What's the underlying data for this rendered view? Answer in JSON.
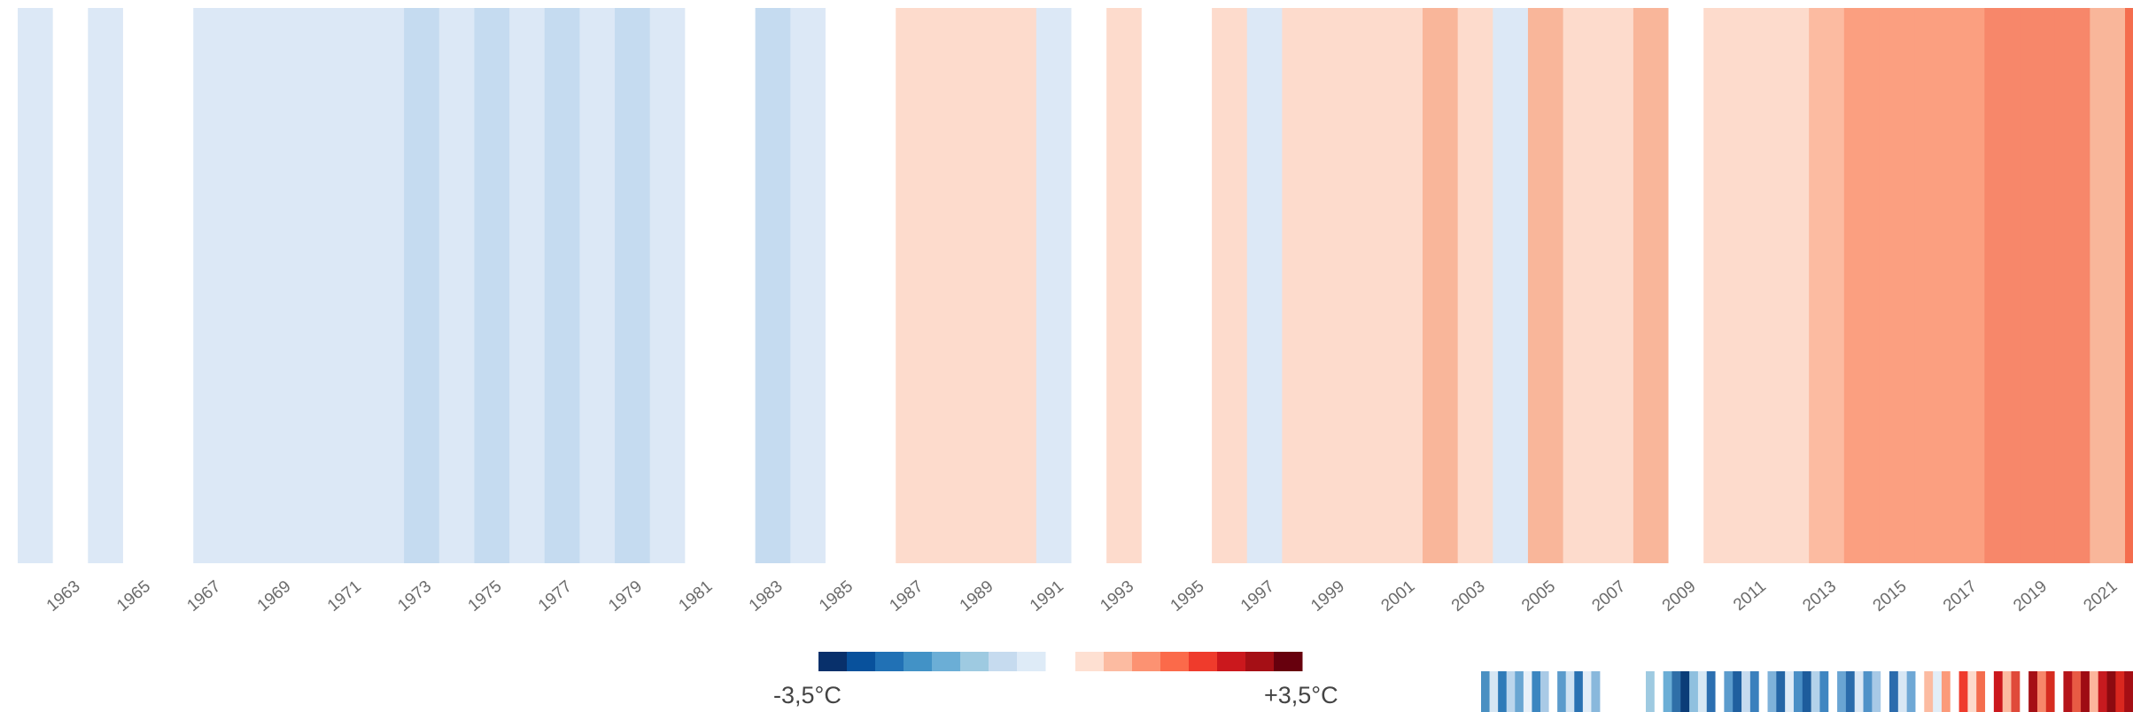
{
  "chart_data": {
    "type": "heatmap",
    "title": "",
    "xlabel": "",
    "ylabel": "",
    "x_labels_shown": [
      "1963",
      "1965",
      "1967",
      "1969",
      "1971",
      "1973",
      "1975",
      "1977",
      "1979",
      "1981",
      "1983",
      "1985",
      "1987",
      "1989",
      "1991",
      "1993",
      "1995",
      "1997",
      "1999",
      "2001",
      "2003",
      "2005",
      "2007",
      "2009",
      "2011",
      "2013",
      "2015",
      "2017",
      "2019",
      "2021"
    ],
    "years": [
      1962,
      1963,
      1964,
      1965,
      1966,
      1967,
      1968,
      1969,
      1970,
      1971,
      1972,
      1973,
      1974,
      1975,
      1976,
      1977,
      1978,
      1979,
      1980,
      1981,
      1982,
      1983,
      1984,
      1985,
      1986,
      1987,
      1988,
      1989,
      1990,
      1991,
      1992,
      1993,
      1994,
      1995,
      1996,
      1997,
      1998,
      1999,
      2000,
      2001,
      2002,
      2003,
      2004,
      2005,
      2006,
      2007,
      2008,
      2009,
      2010,
      2011,
      2012,
      2013,
      2014,
      2015,
      2016,
      2017,
      2018,
      2019,
      2020,
      2021,
      2022
    ],
    "colors": [
      "#dce8f6",
      "#ffffff",
      "#dce8f6",
      "#ffffff",
      "#ffffff",
      "#dce8f6",
      "#dce8f6",
      "#dce8f6",
      "#dce8f6",
      "#dce8f6",
      "#dce8f6",
      "#c5dbf0",
      "#dce8f6",
      "#c5dbf0",
      "#dce8f6",
      "#c5dbf0",
      "#dce8f6",
      "#c5dbf0",
      "#dce8f6",
      "#ffffff",
      "#ffffff",
      "#c5dbf0",
      "#dce8f6",
      "#ffffff",
      "#ffffff",
      "#fddbcc",
      "#fddbcc",
      "#fddbcc",
      "#fddbcc",
      "#dce8f6",
      "#ffffff",
      "#fddbcc",
      "#ffffff",
      "#ffffff",
      "#fddbcc",
      "#dce8f6",
      "#fddbcc",
      "#fddbcc",
      "#fddbcc",
      "#fddbcc",
      "#f9b69a",
      "#fddbcc",
      "#dce8f6",
      "#f9b69a",
      "#fddbcc",
      "#fddbcc",
      "#f9b69a",
      "#ffffff",
      "#fddbcc",
      "#fddbcc",
      "#fddbcc",
      "#fcbba1",
      "#fb9f80",
      "#fb9f80",
      "#fb9f80",
      "#fb9f80",
      "#f7876a",
      "#f7876a",
      "#f7876a",
      "#f9b69a",
      "#f46d4e"
    ],
    "legend": {
      "min_label": "-3,5°C",
      "max_label": "+3,5°C",
      "blue_scale": [
        "#08306b",
        "#08519c",
        "#2171b5",
        "#4292c6",
        "#6baed6",
        "#9ecae1",
        "#c6dbef",
        "#deebf7"
      ],
      "red_scale": [
        "#fee0d2",
        "#fcbba1",
        "#fc9272",
        "#fb6a4a",
        "#ef3b2c",
        "#cb181d",
        "#a50f15",
        "#67000d"
      ]
    },
    "preview_strip_left": [
      "#4a90c2",
      "#d6e6f3",
      "#2f7bb8",
      "#bcd6ec",
      "#6aa6d2",
      "#e9f1f9",
      "#3c86c0",
      "#a9cae6",
      "#ffffff",
      "#5b9bcc",
      "#cfe2f2",
      "#2a72b2",
      "#e3eef8",
      "#89b8dc"
    ],
    "preview_strip_right": [
      "#9ecae1",
      "#ffffff",
      "#6baed6",
      "#2f6fa8",
      "#0b3d78",
      "#8fc0df",
      "#d7e8f4",
      "#2c6fb0",
      "#ffffff",
      "#5c9ccd",
      "#1f5f9f",
      "#c6dbef",
      "#3a80bd",
      "#ffffff",
      "#7fb2da",
      "#2566a6",
      "#deebf7",
      "#4a8fc6",
      "#1d5c9c",
      "#b3d2ea",
      "#3f86c1",
      "#ffffff",
      "#6aa5d3",
      "#2b6cab",
      "#dbe8f5",
      "#4f92c8",
      "#a7c9e6",
      "#ffffff",
      "#2c6cad",
      "#d8e7f4",
      "#6fa8d5",
      "#ffffff",
      "#fcbba1",
      "#e2eef8",
      "#fb9a7a",
      "#ffffff",
      "#ef3b2c",
      "#fddbcc",
      "#f46d4e",
      "#ffffff",
      "#cb181d",
      "#fcbba1",
      "#e04a3a",
      "#ffffff",
      "#a50f15",
      "#f7876a",
      "#d62c20",
      "#ffffff",
      "#b5141a",
      "#e85a44",
      "#9e0c13",
      "#fcb59c",
      "#c71a1f",
      "#8c0a10",
      "#d9271f",
      "#a40e14"
    ]
  }
}
